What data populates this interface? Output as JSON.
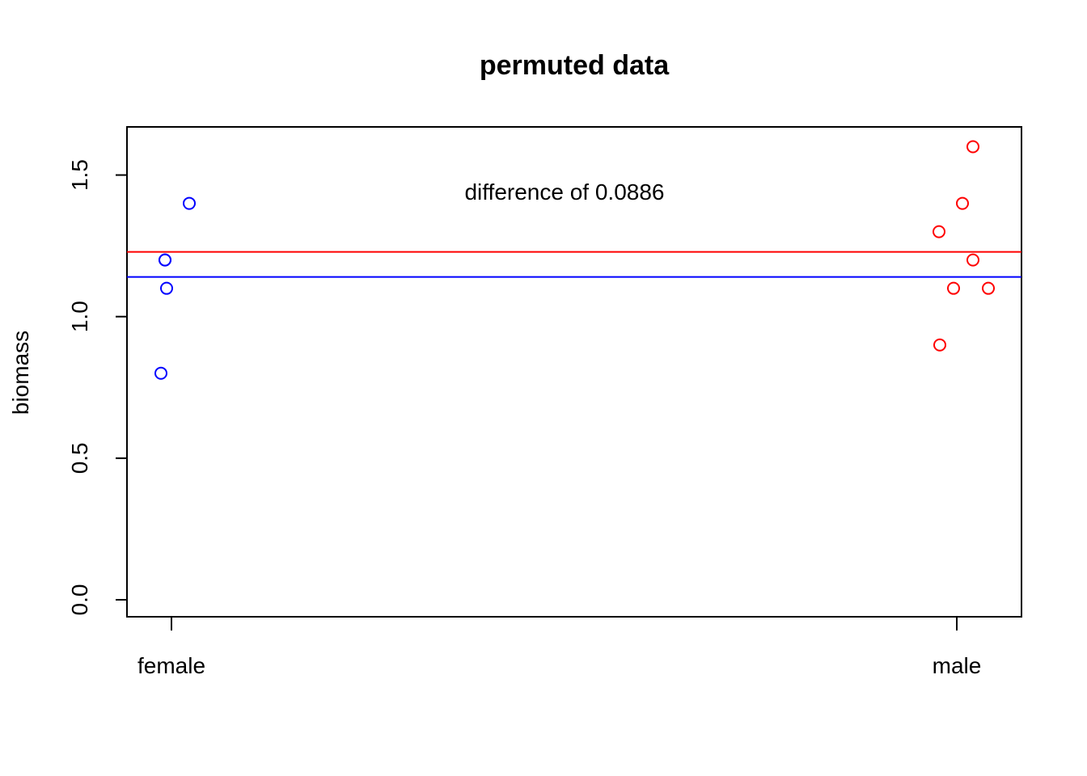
{
  "chart_data": {
    "type": "scatter",
    "title": "permuted data",
    "xlabel": "",
    "ylabel": "biomass",
    "categories": [
      "female",
      "male"
    ],
    "ylim": [
      -0.06,
      1.67
    ],
    "yticks": [
      "0.0",
      "0.5",
      "1.0",
      "1.5"
    ],
    "series": [
      {
        "color": "#0000ff",
        "points": [
          {
            "x": "female",
            "y": 1.4
          },
          {
            "x": "female",
            "y": 1.2
          },
          {
            "x": "female",
            "y": 1.2
          },
          {
            "x": "female",
            "y": 1.1
          },
          {
            "x": "female",
            "y": 0.8
          }
        ],
        "mean": 1.14
      },
      {
        "color": "#ff0000",
        "points": [
          {
            "x": "male",
            "y": 1.6
          },
          {
            "x": "male",
            "y": 1.4
          },
          {
            "x": "male",
            "y": 1.3
          },
          {
            "x": "male",
            "y": 1.2
          },
          {
            "x": "male",
            "y": 1.1
          },
          {
            "x": "male",
            "y": 1.1
          },
          {
            "x": "male",
            "y": 0.9
          }
        ],
        "mean": 1.2286
      }
    ],
    "annotation": "difference of 0.0886",
    "grid": false,
    "legend": "none"
  }
}
